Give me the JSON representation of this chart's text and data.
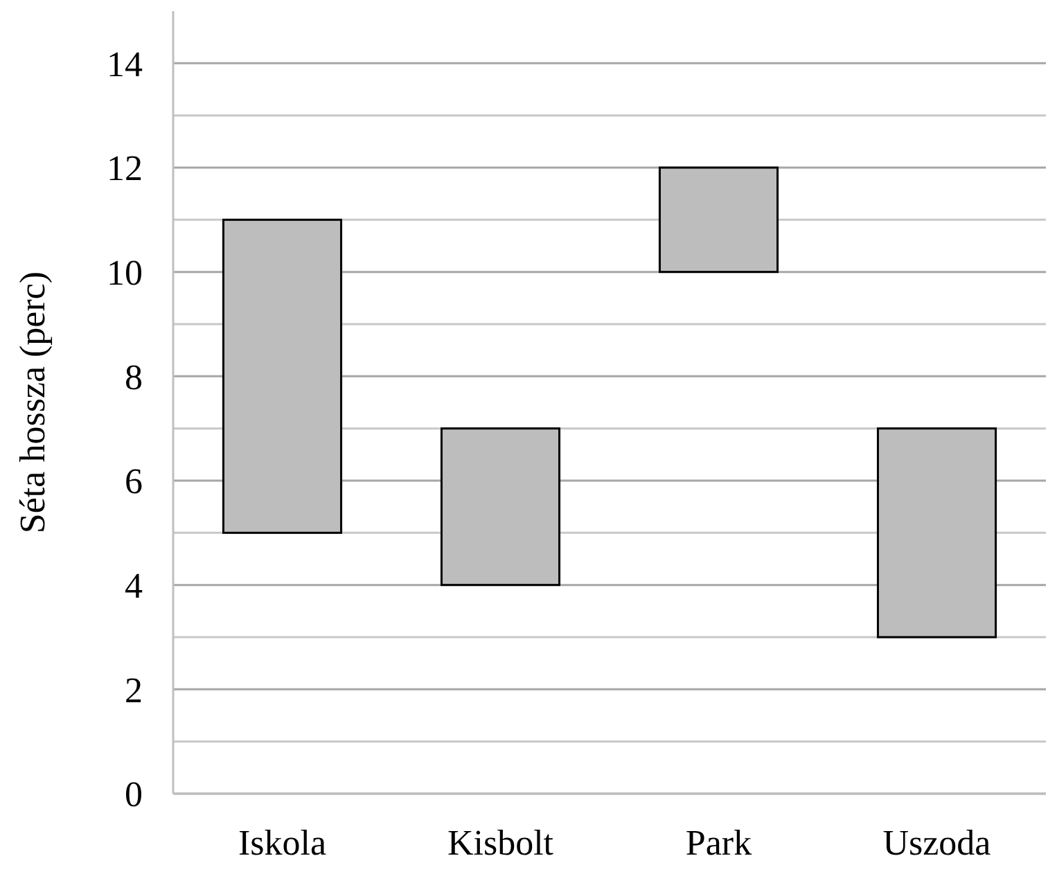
{
  "chart_data": {
    "type": "bar",
    "ylabel": "Séta hossza (perc)",
    "categories": [
      "Iskola",
      "Kisbolt",
      "Park",
      "Uszoda"
    ],
    "values": [
      6,
      3,
      2,
      4
    ],
    "base": [
      5,
      4,
      10,
      3
    ],
    "color": "#bdbdbd",
    "ylim": [
      0,
      15
    ],
    "yticks": [
      0,
      {
        "value": 1,
        "label": null
      },
      2,
      {
        "value": 3,
        "label": null
      },
      4,
      {
        "value": 5,
        "label": null
      },
      6,
      {
        "value": 7,
        "label": null
      },
      8,
      {
        "value": 9,
        "label": null
      },
      10,
      {
        "value": 11,
        "label": null
      },
      12,
      {
        "value": 13,
        "label": null
      },
      14
    ],
    "grid": "y"
  }
}
